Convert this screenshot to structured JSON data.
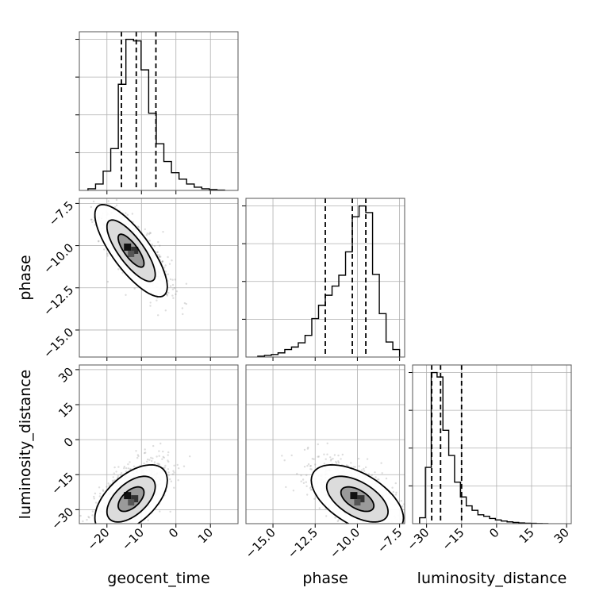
{
  "chart_data": {
    "type": "corner",
    "parameters": [
      "geocent_time",
      "phase",
      "luminosity_distance"
    ],
    "axes": {
      "geocent_time": {
        "label": "geocent_time",
        "range": [
          -28,
          18
        ],
        "ticks": [
          -20,
          -10,
          0,
          10
        ],
        "tick_labels": [
          "−20",
          "−10",
          "0",
          "10"
        ]
      },
      "phase": {
        "label": "phase",
        "range": [
          -16.6,
          -7.2
        ],
        "ticks": [
          -15.0,
          -12.5,
          -10.0,
          -7.5
        ],
        "tick_labels": [
          "−15.0",
          "−12.5",
          "−10.0",
          "−7.5"
        ]
      },
      "luminosity_distance": {
        "label": "luminosity_distance",
        "range": [
          -36,
          32
        ],
        "ticks": [
          -30,
          -15,
          0,
          15,
          30
        ],
        "tick_labels": [
          "−30",
          "−15",
          "0",
          "15",
          "30"
        ]
      }
    },
    "marginals": [
      {
        "parameter": "geocent_time",
        "bin_edges": [
          -25.5,
          -23.3,
          -21.1,
          -18.9,
          -16.7,
          -14.5,
          -12.3,
          -10.1,
          -7.9,
          -5.7,
          -3.5,
          -1.3,
          0.9,
          3.1,
          5.3,
          7.5,
          9.7,
          11.9,
          14.1
        ],
        "counts": [
          1,
          4,
          12,
          26,
          66,
          94,
          93,
          75,
          48,
          29,
          18,
          11,
          7,
          4,
          2,
          1,
          0.5,
          0.2
        ],
        "quantiles": [
          -15.8,
          -11.5,
          -5.8
        ]
      },
      {
        "parameter": "phase",
        "bin_edges": [
          -15.9,
          -15.5,
          -15.1,
          -14.7,
          -14.3,
          -13.9,
          -13.5,
          -13.1,
          -12.7,
          -12.3,
          -11.9,
          -11.5,
          -11.1,
          -10.7,
          -10.3,
          -9.9,
          -9.5,
          -9.1,
          -8.7,
          -8.3,
          -7.9,
          -7.5
        ],
        "counts": [
          1,
          2,
          3,
          5,
          9,
          12,
          17,
          26,
          46,
          62,
          74,
          85,
          98,
          126,
          168,
          181,
          173,
          99,
          52,
          18,
          9
        ],
        "quantiles": [
          -11.9,
          -10.3,
          -9.5
        ]
      },
      {
        "parameter": "luminosity_distance",
        "bin_edges": [
          -33,
          -30.5,
          -28,
          -25.5,
          -23,
          -20.5,
          -18,
          -15.5,
          -13,
          -10.5,
          -8,
          -5.5,
          -3,
          -0.5,
          2,
          4.5,
          7,
          9.5,
          12,
          14.5,
          17,
          19.5,
          22
        ],
        "counts": [
          4,
          38,
          102,
          99,
          63,
          46,
          28,
          18,
          12,
          9,
          6,
          5,
          3.5,
          2.5,
          1.8,
          1.2,
          0.8,
          0.5,
          0.3,
          0.2,
          0.1,
          0.05
        ],
        "quantiles": [
          -27.8,
          -24.0,
          -15.0
        ]
      }
    ],
    "joint": [
      {
        "x": "geocent_time",
        "y": "phase",
        "mean": [
          -12,
          -10.3
        ],
        "std": [
          5,
          1.3
        ],
        "corr": -0.78,
        "peak": [
          -13,
          -10.3
        ]
      },
      {
        "x": "geocent_time",
        "y": "luminosity_distance",
        "mean": [
          -12,
          -22
        ],
        "std": [
          5,
          7
        ],
        "corr": 0.55,
        "peak": [
          -13,
          -25.5
        ]
      },
      {
        "x": "phase",
        "y": "luminosity_distance",
        "mean": [
          -10.3,
          -22
        ],
        "std": [
          1.3,
          7
        ],
        "corr": -0.55,
        "peak": [
          -10.0,
          -25.5
        ]
      }
    ],
    "grid": true,
    "contour_levels": [
      0.39,
      0.86,
      0.99
    ]
  }
}
